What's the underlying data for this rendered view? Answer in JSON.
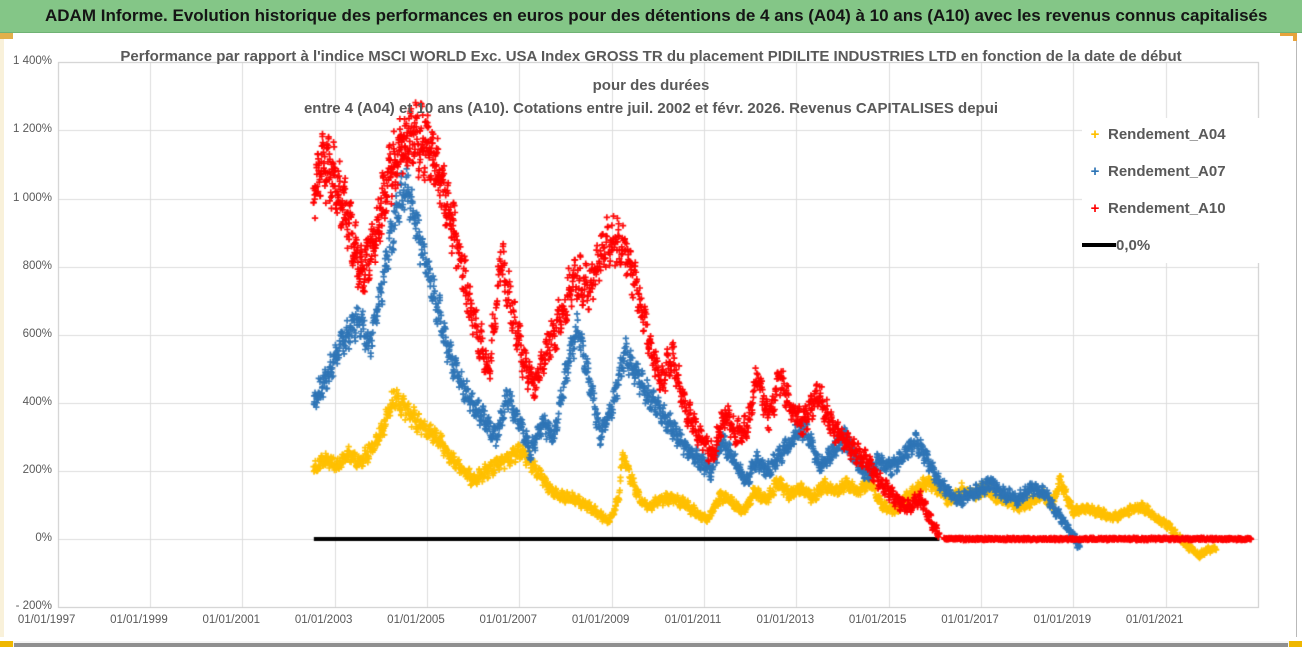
{
  "header": {
    "title": "ADAM Informe. Evolution historique des performances en euros pour des détentions de 4 ans (A04) à 10 ans (A10) avec les revenus connus capitalisés",
    "bg_color": "#84C687"
  },
  "chart_data": {
    "type": "scatter",
    "title_lines": [
      "Performance par rapport à l'indice MSCI WORLD Exc. USA Index GROSS TR  du placement PIDILITE INDUSTRIES LTD en fonction de la date de début",
      "pour des durées",
      "entre 4 (A04) et 10 ans (A10). Cotations entre juil. 2002 et févr. 2026. Revenus CAPITALISES depui"
    ],
    "grid": true,
    "grid_color": "#DCDCDC",
    "axis_text_color": "#595959",
    "ylim": [
      -200,
      1400
    ],
    "xlim_years": [
      1997.0,
      2023.0
    ],
    "y_ticks": [
      {
        "label": "- 200%",
        "value": -200
      },
      {
        "label": "0%",
        "value": 0
      },
      {
        "label": "200%",
        "value": 200
      },
      {
        "label": "400%",
        "value": 400
      },
      {
        "label": "600%",
        "value": 600
      },
      {
        "label": "800%",
        "value": 800
      },
      {
        "label": "1 000%",
        "value": 1000
      },
      {
        "label": "1 200%",
        "value": 1200
      },
      {
        "label": "1 400%",
        "value": 1400
      }
    ],
    "x_ticks": [
      {
        "label": "01/01/1997",
        "year": 1997
      },
      {
        "label": "01/01/1999",
        "year": 1999
      },
      {
        "label": "01/01/2001",
        "year": 2001
      },
      {
        "label": "01/01/2003",
        "year": 2003
      },
      {
        "label": "01/01/2005",
        "year": 2005
      },
      {
        "label": "01/01/2007",
        "year": 2007
      },
      {
        "label": "01/01/2009",
        "year": 2009
      },
      {
        "label": "01/01/2011",
        "year": 2011
      },
      {
        "label": "01/01/2013",
        "year": 2013
      },
      {
        "label": "01/01/2015",
        "year": 2015
      },
      {
        "label": "01/01/2017",
        "year": 2017
      },
      {
        "label": "01/01/2019",
        "year": 2019
      },
      {
        "label": "01/01/2021",
        "year": 2021
      }
    ],
    "legend_position": "right",
    "legend": [
      {
        "label": "Rendement_A04",
        "marker": "+",
        "color": "#FFC000"
      },
      {
        "label": "Rendement_A07",
        "marker": "+",
        "color": "#2E75B6"
      },
      {
        "label": "Rendement_A10",
        "marker": "+",
        "color": "#FF0000"
      },
      {
        "label": "0,0%",
        "marker": "line",
        "color": "#000000"
      }
    ],
    "series": [
      {
        "name": "Rendement_A04",
        "color": "#FFC000",
        "marker": "+",
        "spread_base": 9,
        "spread_k": 0.055,
        "density": 2,
        "points": [
          [
            2002.55,
            205
          ],
          [
            2002.8,
            235
          ],
          [
            2003.05,
            215
          ],
          [
            2003.3,
            245
          ],
          [
            2003.55,
            225
          ],
          [
            2003.8,
            265
          ],
          [
            2004.05,
            330
          ],
          [
            2004.3,
            420
          ],
          [
            2004.5,
            385
          ],
          [
            2004.75,
            350
          ],
          [
            2005.0,
            320
          ],
          [
            2005.25,
            295
          ],
          [
            2005.5,
            245
          ],
          [
            2005.75,
            205
          ],
          [
            2006.0,
            175
          ],
          [
            2006.25,
            195
          ],
          [
            2006.5,
            215
          ],
          [
            2006.75,
            235
          ],
          [
            2007.0,
            255
          ],
          [
            2007.2,
            235
          ],
          [
            2007.45,
            185
          ],
          [
            2007.7,
            140
          ],
          [
            2007.95,
            125
          ],
          [
            2008.2,
            118
          ],
          [
            2008.45,
            98
          ],
          [
            2008.7,
            78
          ],
          [
            2008.95,
            48
          ],
          [
            2009.15,
            120
          ],
          [
            2009.25,
            250
          ],
          [
            2009.4,
            185
          ],
          [
            2009.6,
            120
          ],
          [
            2009.8,
            92
          ],
          [
            2010.0,
            112
          ],
          [
            2010.3,
            122
          ],
          [
            2010.6,
            100
          ],
          [
            2010.9,
            70
          ],
          [
            2011.1,
            58
          ],
          [
            2011.35,
            128
          ],
          [
            2011.6,
            108
          ],
          [
            2011.85,
            82
          ],
          [
            2012.1,
            138
          ],
          [
            2012.35,
            112
          ],
          [
            2012.6,
            168
          ],
          [
            2012.85,
            130
          ],
          [
            2013.1,
            152
          ],
          [
            2013.35,
            122
          ],
          [
            2013.6,
            158
          ],
          [
            2013.85,
            140
          ],
          [
            2014.1,
            165
          ],
          [
            2014.35,
            138
          ],
          [
            2014.6,
            168
          ],
          [
            2014.85,
            100
          ],
          [
            2015.1,
            80
          ],
          [
            2015.35,
            118
          ],
          [
            2015.6,
            148
          ],
          [
            2015.85,
            168
          ],
          [
            2016.1,
            140
          ],
          [
            2016.35,
            110
          ],
          [
            2016.6,
            148
          ],
          [
            2016.85,
            128
          ],
          [
            2017.1,
            152
          ],
          [
            2017.35,
            120
          ],
          [
            2017.6,
            108
          ],
          [
            2017.85,
            95
          ],
          [
            2018.1,
            110
          ],
          [
            2018.35,
            128
          ],
          [
            2018.55,
            100
          ],
          [
            2018.72,
            172
          ],
          [
            2018.85,
            125
          ],
          [
            2019.0,
            80
          ],
          [
            2019.3,
            90
          ],
          [
            2019.6,
            74
          ],
          [
            2019.9,
            64
          ],
          [
            2020.2,
            84
          ],
          [
            2020.5,
            95
          ],
          [
            2020.8,
            60
          ],
          [
            2021.0,
            45
          ],
          [
            2021.2,
            18
          ],
          [
            2021.45,
            -18
          ],
          [
            2021.7,
            -48
          ],
          [
            2021.9,
            -32
          ],
          [
            2022.1,
            -28
          ]
        ]
      },
      {
        "name": "Rendement_A07",
        "color": "#2E75B6",
        "marker": "+",
        "spread_base": 12,
        "spread_k": 0.055,
        "density": 2,
        "points": [
          [
            2002.55,
            400
          ],
          [
            2002.8,
            470
          ],
          [
            2003.05,
            540
          ],
          [
            2003.3,
            600
          ],
          [
            2003.55,
            650
          ],
          [
            2003.75,
            560
          ],
          [
            2004.0,
            720
          ],
          [
            2004.25,
            900
          ],
          [
            2004.45,
            1000
          ],
          [
            2004.6,
            1030
          ],
          [
            2004.8,
            900
          ],
          [
            2005.0,
            800
          ],
          [
            2005.2,
            700
          ],
          [
            2005.45,
            560
          ],
          [
            2005.7,
            470
          ],
          [
            2005.95,
            400
          ],
          [
            2006.2,
            360
          ],
          [
            2006.5,
            300
          ],
          [
            2006.75,
            420
          ],
          [
            2007.0,
            340
          ],
          [
            2007.25,
            258
          ],
          [
            2007.5,
            340
          ],
          [
            2007.75,
            300
          ],
          [
            2008.0,
            480
          ],
          [
            2008.25,
            620
          ],
          [
            2008.5,
            480
          ],
          [
            2008.75,
            300
          ],
          [
            2009.0,
            380
          ],
          [
            2009.3,
            548
          ],
          [
            2009.55,
            480
          ],
          [
            2009.8,
            420
          ],
          [
            2010.05,
            378
          ],
          [
            2010.3,
            330
          ],
          [
            2010.6,
            268
          ],
          [
            2010.9,
            230
          ],
          [
            2011.15,
            200
          ],
          [
            2011.4,
            288
          ],
          [
            2011.65,
            228
          ],
          [
            2011.9,
            170
          ],
          [
            2012.15,
            228
          ],
          [
            2012.4,
            200
          ],
          [
            2012.7,
            258
          ],
          [
            2012.95,
            298
          ],
          [
            2013.2,
            328
          ],
          [
            2013.5,
            210
          ],
          [
            2013.8,
            258
          ],
          [
            2014.05,
            298
          ],
          [
            2014.3,
            228
          ],
          [
            2014.55,
            188
          ],
          [
            2014.8,
            228
          ],
          [
            2015.05,
            208
          ],
          [
            2015.3,
            238
          ],
          [
            2015.6,
            288
          ],
          [
            2015.85,
            228
          ],
          [
            2016.1,
            168
          ],
          [
            2016.35,
            128
          ],
          [
            2016.6,
            118
          ],
          [
            2016.9,
            140
          ],
          [
            2017.2,
            164
          ],
          [
            2017.5,
            130
          ],
          [
            2017.8,
            118
          ],
          [
            2018.1,
            148
          ],
          [
            2018.35,
            138
          ],
          [
            2018.6,
            88
          ],
          [
            2018.85,
            40
          ],
          [
            2019.0,
            5
          ],
          [
            2019.15,
            -22
          ]
        ]
      },
      {
        "name": "Rendement_A10",
        "color": "#FF0000",
        "marker": "+",
        "spread_base": 14,
        "spread_k": 0.07,
        "density": 2,
        "points": [
          [
            2002.55,
            1020
          ],
          [
            2002.75,
            1100
          ],
          [
            2003.0,
            1060
          ],
          [
            2003.3,
            930
          ],
          [
            2003.6,
            770
          ],
          [
            2003.9,
            905
          ],
          [
            2004.2,
            1080
          ],
          [
            2004.5,
            1160
          ],
          [
            2004.8,
            1180
          ],
          [
            2005.1,
            1140
          ],
          [
            2005.35,
            1020
          ],
          [
            2005.6,
            900
          ],
          [
            2005.85,
            740
          ],
          [
            2006.1,
            600
          ],
          [
            2006.35,
            505
          ],
          [
            2006.6,
            830
          ],
          [
            2006.8,
            700
          ],
          [
            2007.1,
            520
          ],
          [
            2007.35,
            450
          ],
          [
            2007.6,
            560
          ],
          [
            2007.9,
            650
          ],
          [
            2008.2,
            790
          ],
          [
            2008.5,
            730
          ],
          [
            2008.8,
            850
          ],
          [
            2009.1,
            878
          ],
          [
            2009.35,
            840
          ],
          [
            2009.6,
            700
          ],
          [
            2009.85,
            560
          ],
          [
            2010.1,
            450
          ],
          [
            2010.3,
            545
          ],
          [
            2010.6,
            380
          ],
          [
            2010.9,
            300
          ],
          [
            2011.2,
            250
          ],
          [
            2011.45,
            372
          ],
          [
            2011.7,
            310
          ],
          [
            2011.95,
            332
          ],
          [
            2012.15,
            482
          ],
          [
            2012.4,
            360
          ],
          [
            2012.65,
            470
          ],
          [
            2012.9,
            380
          ],
          [
            2013.15,
            340
          ],
          [
            2013.45,
            432
          ],
          [
            2013.7,
            350
          ],
          [
            2013.95,
            300
          ],
          [
            2014.2,
            270
          ],
          [
            2014.5,
            230
          ],
          [
            2014.8,
            172
          ],
          [
            2015.1,
            122
          ],
          [
            2015.4,
            92
          ],
          [
            2015.7,
            120
          ],
          [
            2015.95,
            42
          ],
          [
            2016.1,
            12
          ]
        ]
      }
    ],
    "zero_line": {
      "label": "0,0%",
      "color": "#000000",
      "value": 0,
      "x_start": 2002.55,
      "x_end": 2016.1
    },
    "red_flat_segment": {
      "color": "#FF0000",
      "value": 0,
      "x_start": 2016.2,
      "x_end": 2022.85
    }
  }
}
